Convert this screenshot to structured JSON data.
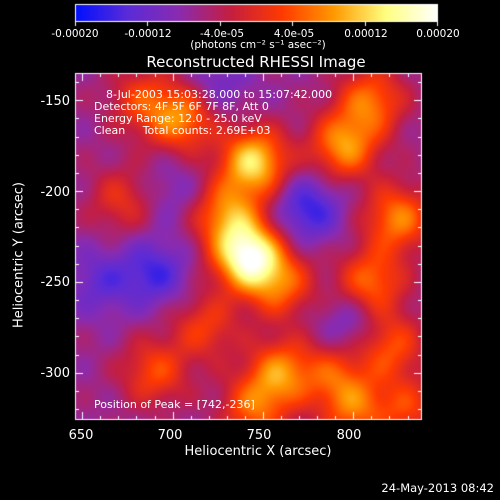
{
  "colorbar": {
    "ticks": [
      "-0.00020",
      "-0.00012",
      "-4.0e-05",
      "4.0e-05",
      "0.00012",
      "0.00020"
    ],
    "units_text": "(photons cm⁻² s⁻¹ asec⁻²)",
    "range": [
      -0.0002,
      0.0002
    ],
    "colors": [
      "#0010ff",
      "#5a2bd8",
      "#8a2bb0",
      "#c51e40",
      "#ff3a00",
      "#ff9a00",
      "#ffff80",
      "#ffffff"
    ]
  },
  "image": {
    "title": "Reconstructed RHESSI Image",
    "info_lines": [
      "8-Jul-2003 15:03:28.000 to 15:07:42.000",
      "Detectors: 4F 5F 6F 7F 8F, Att 0",
      "Energy Range: 12.0 - 25.0 keV",
      "Clean     Total counts: 2.69E+03"
    ],
    "peak_text": "Position of Peak = [742,-236]",
    "peak": [
      742,
      -236
    ]
  },
  "axes": {
    "xlabel": "Heliocentric X (arcsec)",
    "ylabel": "Heliocentric Y (arcsec)",
    "xticks": [
      "650",
      "700",
      "750",
      "800"
    ],
    "yticks": [
      "-150",
      "-200",
      "-250",
      "-300"
    ],
    "xlim": [
      646,
      838
    ],
    "ylim": [
      -326,
      -135
    ]
  },
  "footer": {
    "timestamp": "24-May-2013 08:42"
  },
  "blobs": [
    {
      "x": 742,
      "y": -236,
      "a": 1.0
    },
    {
      "x": 745,
      "y": -184,
      "a": 0.78
    },
    {
      "x": 730,
      "y": -213,
      "a": 0.55
    },
    {
      "x": 760,
      "y": -252,
      "a": 0.45
    },
    {
      "x": 705,
      "y": -160,
      "a": 0.55
    },
    {
      "x": 683,
      "y": -150,
      "a": 0.35
    },
    {
      "x": 672,
      "y": -205,
      "a": 0.3
    },
    {
      "x": 690,
      "y": -300,
      "a": 0.4
    },
    {
      "x": 718,
      "y": -275,
      "a": 0.35
    },
    {
      "x": 795,
      "y": -175,
      "a": 0.6
    },
    {
      "x": 810,
      "y": -150,
      "a": 0.5
    },
    {
      "x": 825,
      "y": -215,
      "a": 0.55
    },
    {
      "x": 810,
      "y": -250,
      "a": 0.5
    },
    {
      "x": 820,
      "y": -285,
      "a": 0.45
    },
    {
      "x": 790,
      "y": -300,
      "a": 0.35
    },
    {
      "x": 760,
      "y": -300,
      "a": 0.55
    },
    {
      "x": 745,
      "y": -320,
      "a": 0.45
    },
    {
      "x": 800,
      "y": -320,
      "a": 0.45
    },
    {
      "x": 830,
      "y": -320,
      "a": 0.35
    },
    {
      "x": 775,
      "y": -210,
      "a": -0.4
    },
    {
      "x": 690,
      "y": -245,
      "a": -0.35
    },
    {
      "x": 660,
      "y": -250,
      "a": -0.25
    },
    {
      "x": 725,
      "y": -140,
      "a": -0.2
    },
    {
      "x": 800,
      "y": -275,
      "a": -0.25
    },
    {
      "x": 700,
      "y": -200,
      "a": -0.15
    }
  ]
}
